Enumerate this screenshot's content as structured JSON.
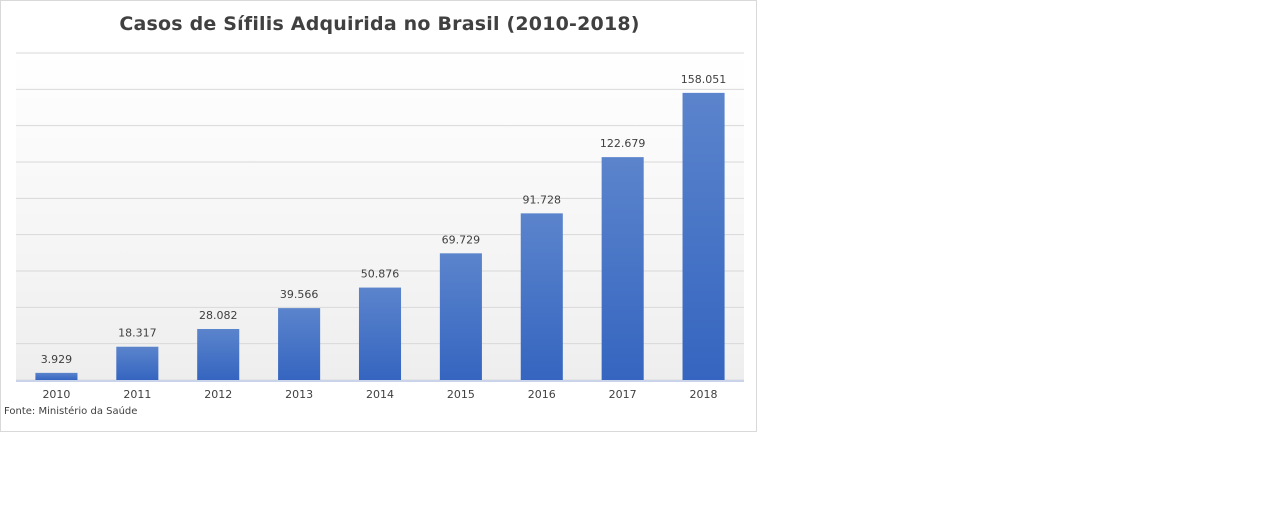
{
  "chart_data": {
    "type": "bar",
    "title": "Casos de Sífilis Adquirida no Brasil (2010-2018)",
    "categories": [
      "2010",
      "2011",
      "2012",
      "2013",
      "2014",
      "2015",
      "2016",
      "2017",
      "2018"
    ],
    "values": [
      3929,
      18317,
      28082,
      39566,
      50876,
      69729,
      91728,
      122679,
      158051
    ],
    "data_labels": [
      "3.929",
      "18.317",
      "28.082",
      "39.566",
      "50.876",
      "69.729",
      "91.728",
      "122.679",
      "158.051"
    ],
    "xlabel": "",
    "ylabel": "",
    "ylim": [
      0,
      180000
    ],
    "grid": true,
    "legend": "none",
    "bar_color": "#4472c4",
    "source_note": "Fonte: Ministério da Saúde"
  }
}
